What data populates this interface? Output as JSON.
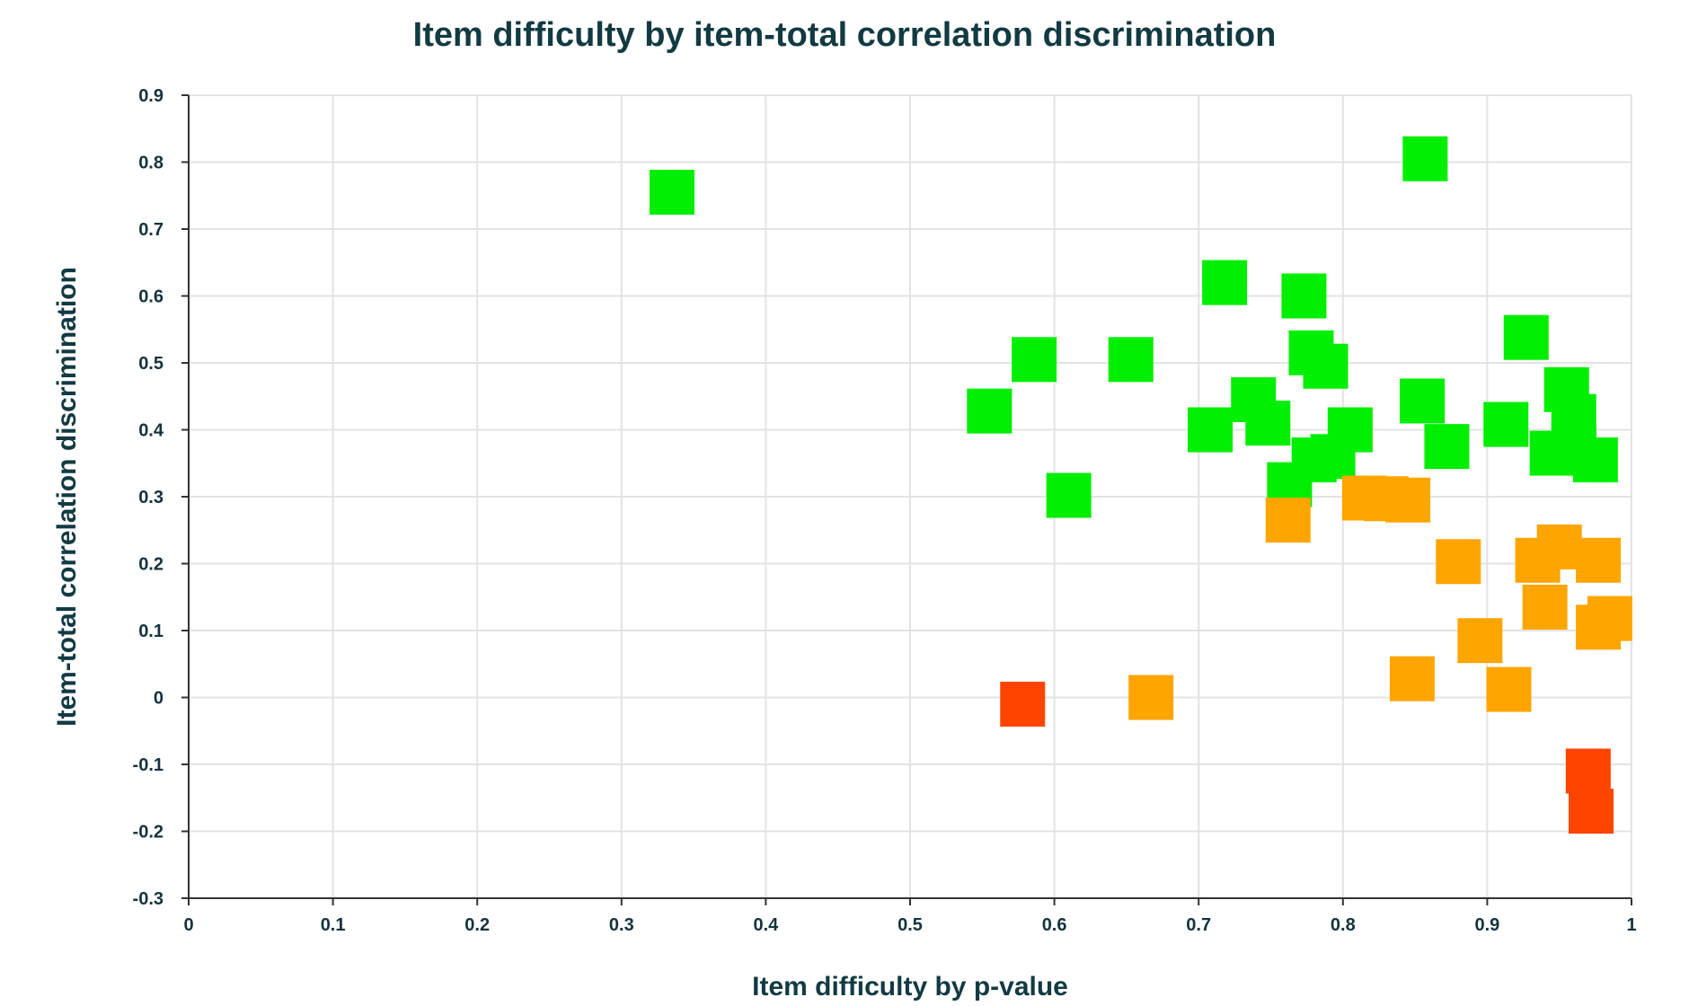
{
  "chart_data": {
    "type": "scatter",
    "title": "Item difficulty by item-total correlation discrimination",
    "xlabel": "Item difficulty by p-value",
    "ylabel": "Item-total correlation discrimination",
    "xlim": [
      0,
      1
    ],
    "ylim": [
      -0.3,
      0.9
    ],
    "xticks": [
      "0",
      "0.1",
      "0.2",
      "0.3",
      "0.4",
      "0.5",
      "0.6",
      "0.7",
      "0.8",
      "0.9",
      "1"
    ],
    "yticks": [
      "-0.3",
      "-0.2",
      "-0.1",
      "0",
      "0.1",
      "0.2",
      "0.3",
      "0.4",
      "0.5",
      "0.6",
      "0.7",
      "0.8",
      "0.9"
    ],
    "grid": true,
    "marker": "square",
    "colors": {
      "green": "#00ee00",
      "orange": "#ffa500",
      "red": "#ff4400"
    },
    "points": [
      {
        "x": 0.335,
        "y": 0.755,
        "color": "green"
      },
      {
        "x": 0.857,
        "y": 0.805,
        "color": "green"
      },
      {
        "x": 0.718,
        "y": 0.62,
        "color": "green"
      },
      {
        "x": 0.773,
        "y": 0.6,
        "color": "green"
      },
      {
        "x": 0.927,
        "y": 0.538,
        "color": "green"
      },
      {
        "x": 0.586,
        "y": 0.505,
        "color": "green"
      },
      {
        "x": 0.653,
        "y": 0.505,
        "color": "green"
      },
      {
        "x": 0.778,
        "y": 0.515,
        "color": "green"
      },
      {
        "x": 0.788,
        "y": 0.495,
        "color": "green"
      },
      {
        "x": 0.555,
        "y": 0.428,
        "color": "green"
      },
      {
        "x": 0.738,
        "y": 0.445,
        "color": "green"
      },
      {
        "x": 0.748,
        "y": 0.41,
        "color": "green"
      },
      {
        "x": 0.855,
        "y": 0.443,
        "color": "green"
      },
      {
        "x": 0.955,
        "y": 0.46,
        "color": "green"
      },
      {
        "x": 0.96,
        "y": 0.42,
        "color": "green"
      },
      {
        "x": 0.708,
        "y": 0.4,
        "color": "green"
      },
      {
        "x": 0.805,
        "y": 0.4,
        "color": "green"
      },
      {
        "x": 0.913,
        "y": 0.408,
        "color": "green"
      },
      {
        "x": 0.872,
        "y": 0.375,
        "color": "green"
      },
      {
        "x": 0.945,
        "y": 0.365,
        "color": "green"
      },
      {
        "x": 0.96,
        "y": 0.375,
        "color": "green"
      },
      {
        "x": 0.975,
        "y": 0.355,
        "color": "green"
      },
      {
        "x": 0.78,
        "y": 0.355,
        "color": "green"
      },
      {
        "x": 0.793,
        "y": 0.36,
        "color": "green"
      },
      {
        "x": 0.763,
        "y": 0.318,
        "color": "green"
      },
      {
        "x": 0.61,
        "y": 0.302,
        "color": "green"
      },
      {
        "x": 0.762,
        "y": 0.265,
        "color": "orange"
      },
      {
        "x": 0.815,
        "y": 0.298,
        "color": "orange"
      },
      {
        "x": 0.83,
        "y": 0.297,
        "color": "orange"
      },
      {
        "x": 0.845,
        "y": 0.295,
        "color": "orange"
      },
      {
        "x": 0.88,
        "y": 0.203,
        "color": "orange"
      },
      {
        "x": 0.935,
        "y": 0.205,
        "color": "orange"
      },
      {
        "x": 0.95,
        "y": 0.225,
        "color": "orange"
      },
      {
        "x": 0.977,
        "y": 0.205,
        "color": "orange"
      },
      {
        "x": 0.94,
        "y": 0.135,
        "color": "orange"
      },
      {
        "x": 0.977,
        "y": 0.105,
        "color": "orange"
      },
      {
        "x": 0.985,
        "y": 0.118,
        "color": "orange"
      },
      {
        "x": 0.895,
        "y": 0.085,
        "color": "orange"
      },
      {
        "x": 0.848,
        "y": 0.028,
        "color": "orange"
      },
      {
        "x": 0.915,
        "y": 0.012,
        "color": "orange"
      },
      {
        "x": 0.667,
        "y": 0.0,
        "color": "orange"
      },
      {
        "x": 0.578,
        "y": -0.01,
        "color": "red"
      },
      {
        "x": 0.97,
        "y": -0.11,
        "color": "red"
      },
      {
        "x": 0.972,
        "y": -0.17,
        "color": "red"
      }
    ]
  }
}
